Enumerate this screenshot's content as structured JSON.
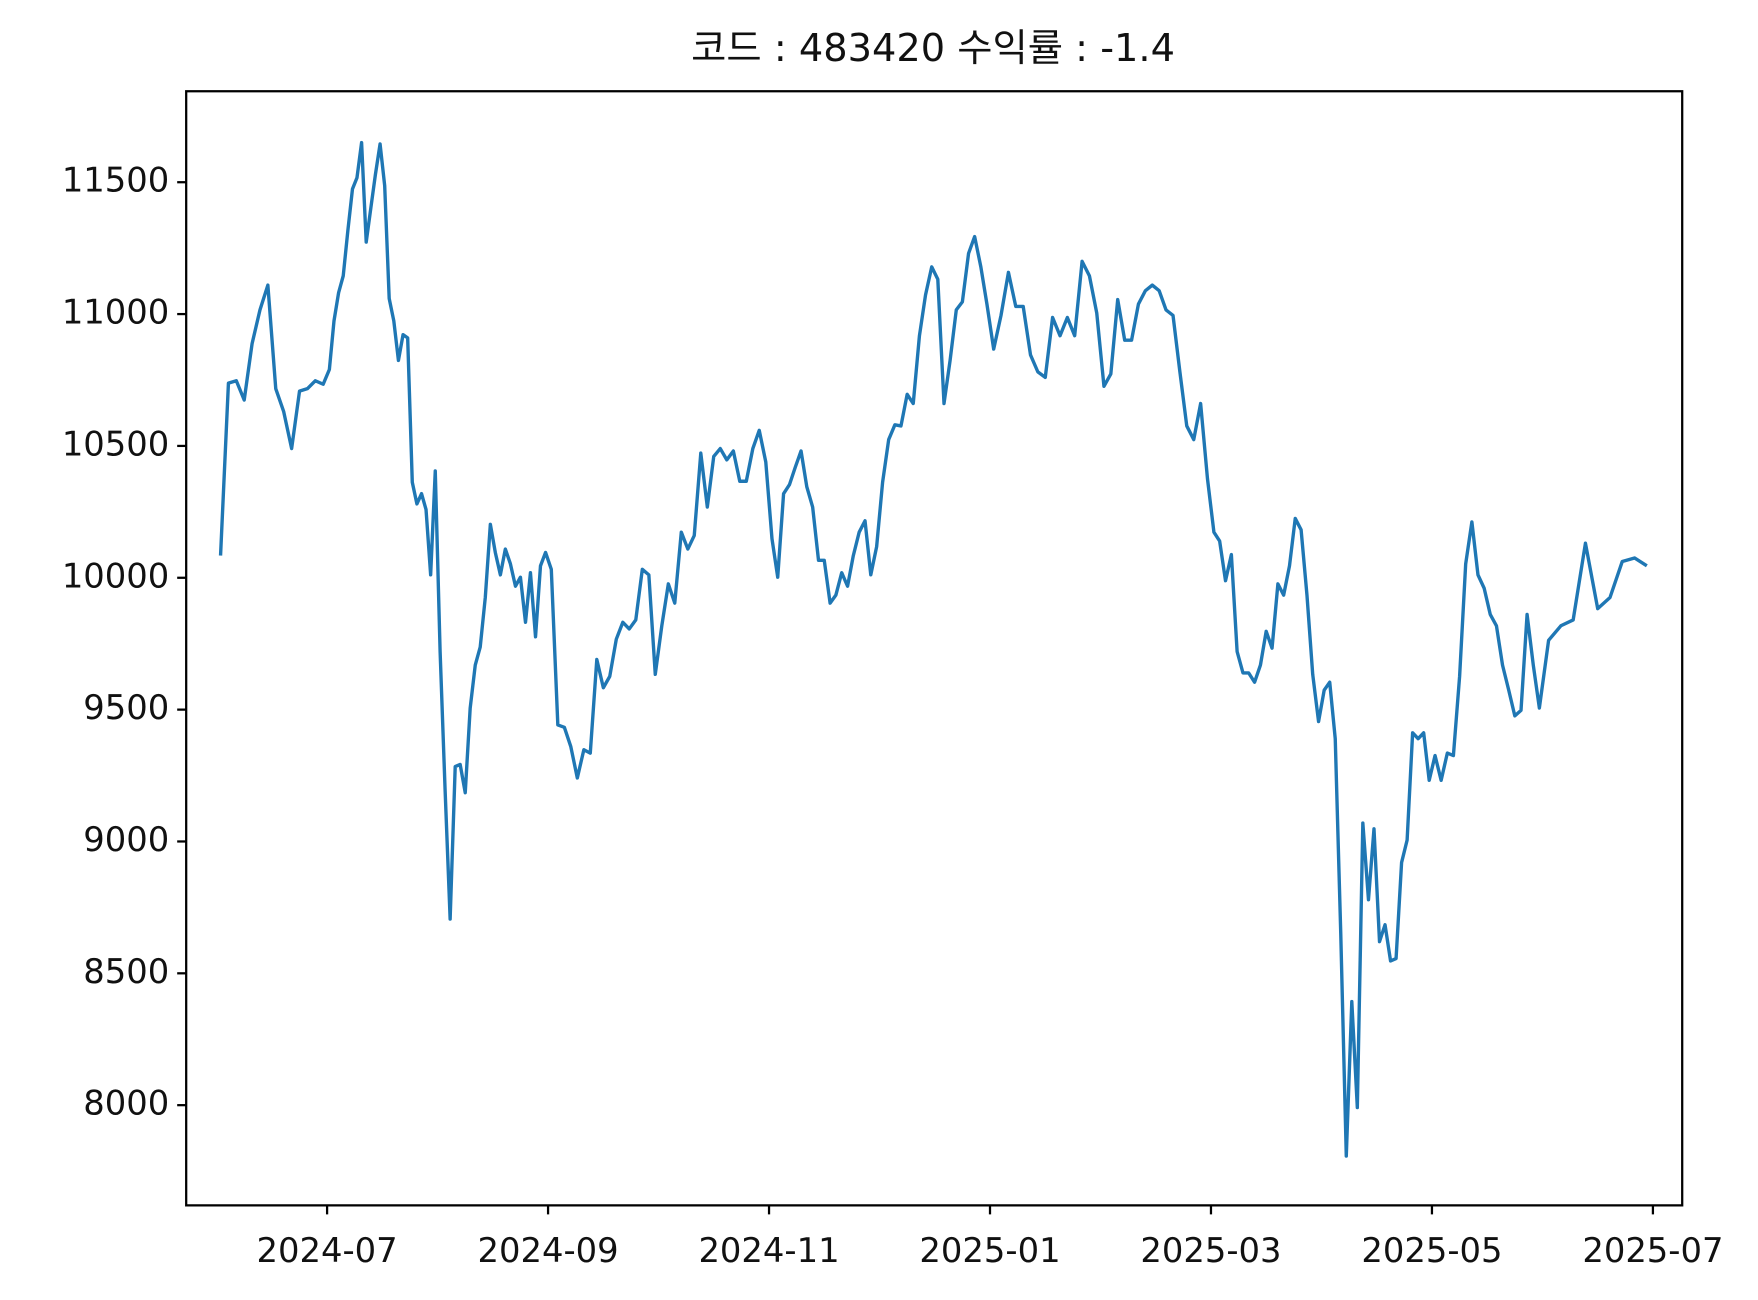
{
  "chart_data": {
    "type": "line",
    "title": "코드 : 483420 수익률 : -1.4",
    "color": "#1f77b4",
    "x": [
      "2024-06",
      "2024-06",
      "2024-06",
      "2024-06",
      "2024-06",
      "2024-06",
      "2024-06",
      "2024-06",
      "2024-06",
      "2024-06",
      "2024-06",
      "2024-06",
      "2024-06",
      "2024-06",
      "2024-07",
      "2024-07",
      "2024-07",
      "2024-07",
      "2024-07",
      "2024-07",
      "2024-07",
      "2024-07",
      "2024-07",
      "2024-07",
      "2024-07",
      "2024-07",
      "2024-07",
      "2024-07",
      "2024-07",
      "2024-07",
      "2024-07",
      "2024-07",
      "2024-07",
      "2024-07",
      "2024-07",
      "2024-07",
      "2024-07",
      "2024-07",
      "2024-08",
      "2024-08",
      "2024-08",
      "2024-08",
      "2024-08",
      "2024-08",
      "2024-08",
      "2024-08",
      "2024-08",
      "2024-08",
      "2024-08",
      "2024-08",
      "2024-08",
      "2024-08",
      "2024-08",
      "2024-08",
      "2024-08",
      "2024-08",
      "2024-08",
      "2024-08",
      "2024-08",
      "2024-08",
      "2024-09",
      "2024-09",
      "2024-09",
      "2024-09",
      "2024-09",
      "2024-09",
      "2024-09",
      "2024-09",
      "2024-09",
      "2024-09",
      "2024-09",
      "2024-09",
      "2024-09",
      "2024-09",
      "2024-09",
      "2024-09",
      "2024-09",
      "2024-10",
      "2024-10",
      "2024-10",
      "2024-10",
      "2024-10",
      "2024-10",
      "2024-10",
      "2024-10",
      "2024-10",
      "2024-10",
      "2024-10",
      "2024-10",
      "2024-10",
      "2024-10",
      "2024-10",
      "2024-10",
      "2024-10",
      "2024-11",
      "2024-11",
      "2024-11",
      "2024-11",
      "2024-11",
      "2024-11",
      "2024-11",
      "2024-11",
      "2024-11",
      "2024-11",
      "2024-11",
      "2024-11",
      "2024-11",
      "2024-11",
      "2024-11",
      "2024-11",
      "2024-11",
      "2024-11",
      "2024-11",
      "2024-12",
      "2024-12",
      "2024-12",
      "2024-12",
      "2024-12",
      "2024-12",
      "2024-12",
      "2024-12",
      "2024-12",
      "2024-12",
      "2024-12",
      "2024-12",
      "2024-12",
      "2024-12",
      "2024-12",
      "2024-12",
      "2024-12",
      "2024-12",
      "2025-01",
      "2025-01",
      "2025-01",
      "2025-01",
      "2025-01",
      "2025-01",
      "2025-01",
      "2025-01",
      "2025-01",
      "2025-01",
      "2025-01",
      "2025-01",
      "2025-01",
      "2025-01",
      "2025-01",
      "2025-02",
      "2025-02",
      "2025-02",
      "2025-02",
      "2025-02",
      "2025-02",
      "2025-02",
      "2025-02",
      "2025-02",
      "2025-02",
      "2025-02",
      "2025-02",
      "2025-02",
      "2025-02",
      "2025-02",
      "2025-02",
      "2025-03",
      "2025-03",
      "2025-03",
      "2025-03",
      "2025-03",
      "2025-03",
      "2025-03",
      "2025-03",
      "2025-03",
      "2025-03",
      "2025-03",
      "2025-03",
      "2025-03",
      "2025-03",
      "2025-03",
      "2025-03",
      "2025-03",
      "2025-03",
      "2025-03",
      "2025-04",
      "2025-04",
      "2025-04",
      "2025-04",
      "2025-04",
      "2025-04",
      "2025-04",
      "2025-04",
      "2025-04",
      "2025-04",
      "2025-04",
      "2025-04",
      "2025-04",
      "2025-04",
      "2025-04",
      "2025-04",
      "2025-04",
      "2025-04",
      "2025-04",
      "2025-04",
      "2025-05",
      "2025-05",
      "2025-05",
      "2025-05",
      "2025-05",
      "2025-05",
      "2025-05",
      "2025-05",
      "2025-05",
      "2025-05",
      "2025-05",
      "2025-05",
      "2025-05",
      "2025-05",
      "2025-05",
      "2025-05",
      "2025-05",
      "2025-05",
      "2025-06",
      "2025-06",
      "2025-06",
      "2025-06",
      "2025-06",
      "2025-06",
      "2025-06",
      "2025-06",
      "2025-06"
    ],
    "values": [
      10084,
      10738,
      10747,
      10674,
      10888,
      11016,
      11110,
      10717,
      10631,
      10490,
      10708,
      10717,
      10747,
      10734,
      10790,
      10974,
      11081,
      11145,
      11316,
      11474,
      11517,
      11650,
      11273,
      11402,
      11530,
      11645,
      11487,
      11059,
      10974,
      10824,
      10922,
      10910,
      10362,
      10280,
      10319,
      10259,
      10011,
      10405,
      9720,
      9198,
      8706,
      9284,
      9292,
      9185,
      9506,
      9669,
      9737,
      9925,
      10203,
      10096,
      10011,
      10109,
      10053,
      9968,
      10002,
      9831,
      10019,
      9776,
      10045,
      10096,
      10032,
      9442,
      9433,
      9360,
      9241,
      9348,
      9335,
      9690,
      9583,
      9626,
      9767,
      9831,
      9806,
      9840,
      10032,
      10011,
      9634,
      9818,
      9977,
      9904,
      10173,
      10109,
      10160,
      10473,
      10268,
      10460,
      10490,
      10447,
      10481,
      10366,
      10366,
      10490,
      10559,
      10439,
      10148,
      10002,
      10319,
      10353,
      10418,
      10481,
      10345,
      10268,
      10066,
      10066,
      9904,
      9934,
      10019,
      9968,
      10084,
      10173,
      10216,
      10011,
      10118,
      10362,
      10524,
      10580,
      10576,
      10696,
      10661,
      10918,
      11072,
      11179,
      11132,
      10661,
      10824,
      11016,
      11046,
      11230,
      11294,
      11179,
      11038,
      10867,
      10995,
      11158,
      11029,
      11029,
      10845,
      10781,
      10760,
      10987,
      10918,
      10987,
      10918,
      11200,
      11145,
      11004,
      10726,
      10773,
      11055,
      10901,
      10901,
      11038,
      11089,
      11110,
      11089,
      11016,
      10995,
      10781,
      10576,
      10524,
      10661,
      10375,
      10173,
      10139,
      9989,
      10088,
      9720,
      9639,
      9639,
      9604,
      9669,
      9797,
      9733,
      9977,
      9934,
      10045,
      10225,
      10182,
      9934,
      9634,
      9455,
      9574,
      9604,
      9390,
      8650,
      7807,
      8393,
      7991,
      9070,
      8779,
      9048,
      8620,
      8684,
      8547,
      8556,
      8920,
      9005,
      9412,
      9390,
      9412,
      9232,
      9326,
      9232,
      9335,
      9326,
      9626,
      10053,
      10212,
      10011,
      9960,
      9861,
      9818,
      9669,
      9574,
      9476,
      9497,
      9861,
      9669,
      9506,
      9763,
      9818,
      9840,
      10131,
      9883,
      9925,
      10062,
      10075,
      10045
    ],
    "xlim": [
      "2024-06",
      "2025-07"
    ],
    "xticks": [
      "2024-07",
      "2024-09",
      "2024-11",
      "2025-01",
      "2025-03",
      "2025-05",
      "2025-07"
    ],
    "ylim": [
      7620,
      11845
    ],
    "yticks": [
      8000,
      8500,
      9000,
      9500,
      10000,
      10500,
      11000,
      11500
    ]
  }
}
